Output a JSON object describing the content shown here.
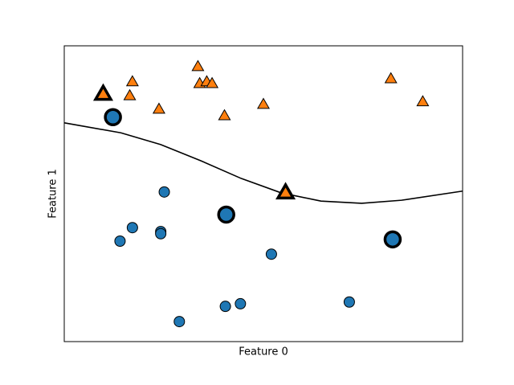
{
  "chart_data": {
    "type": "scatter",
    "xlabel": "Feature 0",
    "ylabel": "Feature 1",
    "xlim": [
      7.8,
      12.3
    ],
    "ylim": [
      -1.0,
      5.8
    ],
    "xticks": [],
    "yticks": [],
    "series": [
      {
        "marker": "circle",
        "color": "#1f77b4",
        "support_vectors": false,
        "x": [
          8.93,
          8.57,
          8.43,
          8.89,
          8.89,
          10.14,
          9.62,
          9.79,
          9.1,
          11.02
        ],
        "values": [
          2.44,
          1.62,
          1.31,
          1.53,
          1.48,
          1.01,
          -0.19,
          -0.13,
          -0.54,
          -0.09
        ]
      },
      {
        "marker": "triangle",
        "color": "#ff7f0e",
        "support_vectors": false,
        "x": [
          9.31,
          8.57,
          9.33,
          9.41,
          9.47,
          8.54,
          8.87,
          9.61,
          10.05,
          11.49,
          11.85
        ],
        "values": [
          5.32,
          4.97,
          4.93,
          4.97,
          4.93,
          4.65,
          4.34,
          4.19,
          4.45,
          5.04,
          4.51
        ]
      },
      {
        "marker": "circle",
        "color": "#1f77b4",
        "support_vectors": true,
        "x": [
          8.35,
          9.63,
          11.51
        ],
        "values": [
          4.16,
          1.92,
          1.35
        ]
      },
      {
        "marker": "triangle",
        "color": "#ff7f0e",
        "support_vectors": true,
        "x": [
          8.24,
          10.3
        ],
        "values": [
          4.69,
          2.42
        ]
      }
    ],
    "boundary": {
      "color": "#000000",
      "x": [
        7.8,
        8.44,
        8.89,
        9.34,
        9.8,
        10.25,
        10.7,
        11.16,
        11.61,
        12.3
      ],
      "values": [
        4.03,
        3.8,
        3.53,
        3.16,
        2.75,
        2.42,
        2.23,
        2.18,
        2.25,
        2.46
      ]
    }
  }
}
